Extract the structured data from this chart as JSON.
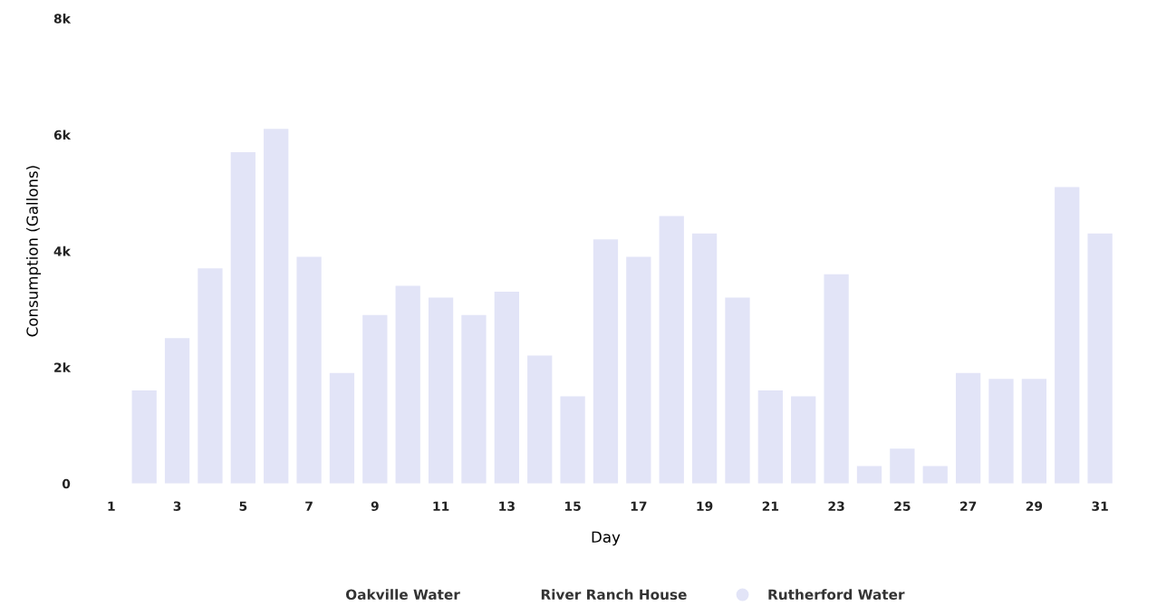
{
  "chart_data": {
    "type": "bar",
    "xlabel": "Day",
    "ylabel": "Consumption (Gallons)",
    "categories": [
      "1",
      null,
      "3",
      null,
      "5",
      null,
      "7",
      null,
      "9",
      null,
      "11",
      null,
      "13",
      null,
      "15",
      null,
      "17",
      null,
      "19",
      null,
      "21",
      null,
      "23",
      null,
      "25",
      null,
      "27",
      null,
      "29",
      null,
      "31"
    ],
    "series": [
      {
        "name": "Oakville Water",
        "values": [
          null,
          null,
          null,
          null,
          null,
          null,
          null,
          null,
          null,
          null,
          null,
          null,
          null,
          null,
          null,
          null,
          null,
          null,
          null,
          null,
          null,
          null,
          null,
          null,
          null,
          null,
          null,
          null,
          null,
          null,
          null
        ]
      },
      {
        "name": "River Ranch House",
        "values": [
          null,
          null,
          null,
          null,
          null,
          null,
          null,
          null,
          null,
          null,
          null,
          null,
          null,
          null,
          null,
          null,
          null,
          null,
          null,
          null,
          null,
          null,
          null,
          null,
          null,
          null,
          null,
          null,
          null,
          null,
          null
        ]
      },
      {
        "name": "Rutherford Water",
        "color": "#e2e4f7",
        "values": [
          null,
          1600,
          2500,
          3700,
          5700,
          6100,
          3900,
          1900,
          2900,
          3400,
          3200,
          2900,
          3300,
          2200,
          1500,
          4200,
          3900,
          4600,
          4300,
          3200,
          1600,
          1500,
          3600,
          300,
          600,
          300,
          1900,
          1800,
          1800,
          5100,
          4300
        ]
      }
    ],
    "ylim": [
      0,
      8000
    ],
    "yticks": [
      0,
      {
        "value": 2000,
        "label": "2k"
      },
      {
        "value": 4000,
        "label": "4k"
      },
      {
        "value": 6000,
        "label": "6k"
      },
      {
        "value": 8000,
        "label": "8k"
      }
    ],
    "grid": false,
    "legend": "bottom"
  }
}
